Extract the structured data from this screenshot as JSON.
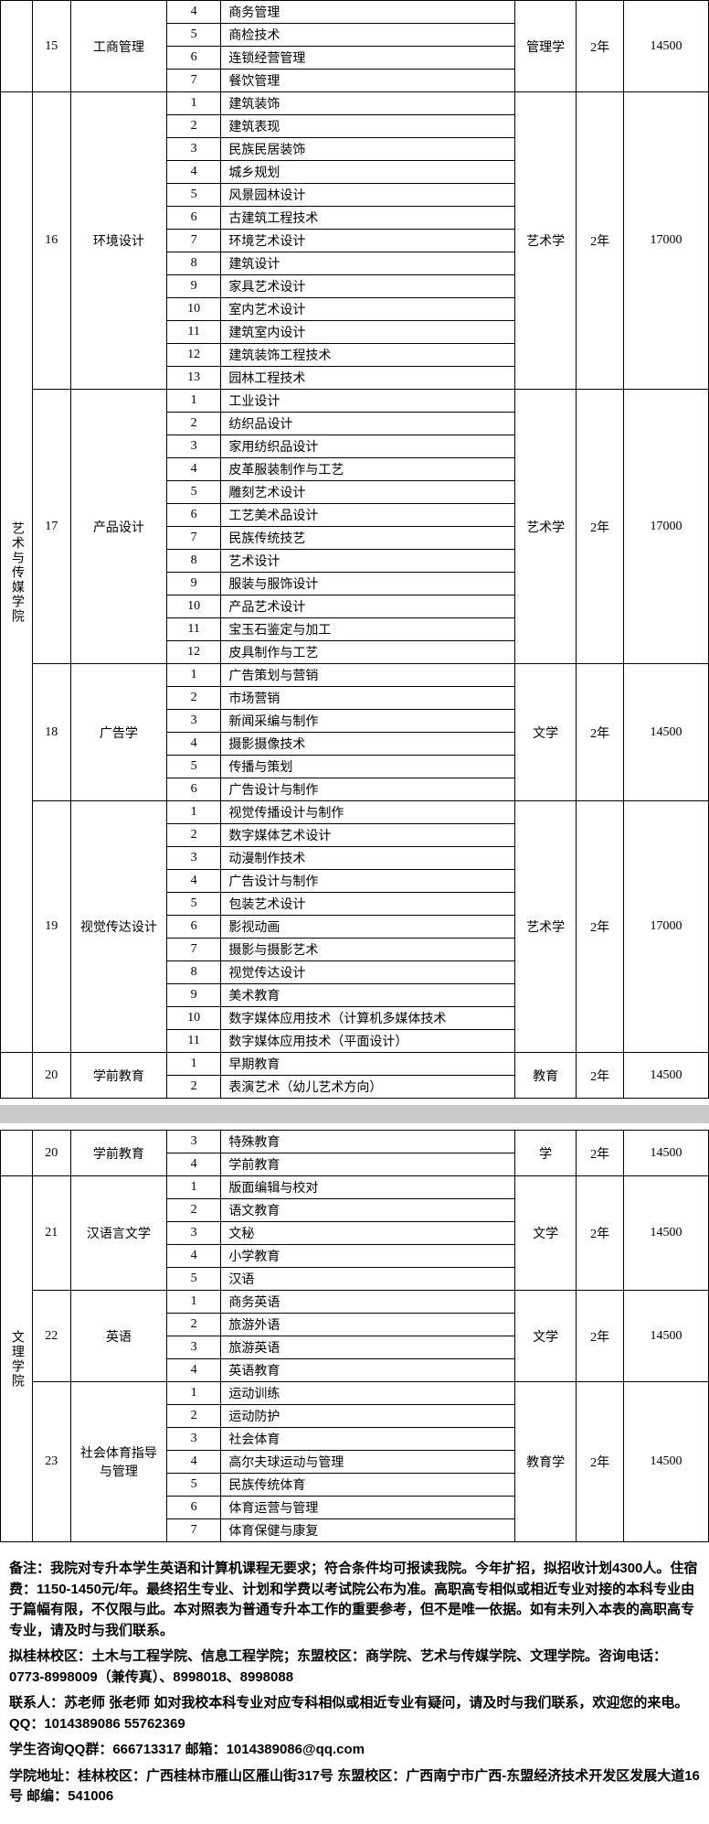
{
  "page1": {
    "dept1": "艺术与传媒学院",
    "groups": [
      {
        "mid": "15",
        "major": "工商管理",
        "cat": "管理学",
        "dur": "2年",
        "fee": "14500",
        "rows": [
          {
            "i": "4",
            "c": "商务管理"
          },
          {
            "i": "5",
            "c": "商检技术"
          },
          {
            "i": "6",
            "c": "连锁经营管理"
          },
          {
            "i": "7",
            "c": "餐饮管理"
          }
        ]
      },
      {
        "mid": "16",
        "major": "环境设计",
        "cat": "艺术学",
        "dur": "2年",
        "fee": "17000",
        "rows": [
          {
            "i": "1",
            "c": "建筑装饰"
          },
          {
            "i": "2",
            "c": "建筑表现"
          },
          {
            "i": "3",
            "c": "民族民居装饰"
          },
          {
            "i": "4",
            "c": "城乡规划"
          },
          {
            "i": "5",
            "c": "风景园林设计"
          },
          {
            "i": "6",
            "c": "古建筑工程技术"
          },
          {
            "i": "7",
            "c": "环境艺术设计"
          },
          {
            "i": "8",
            "c": "建筑设计"
          },
          {
            "i": "9",
            "c": "家具艺术设计"
          },
          {
            "i": "10",
            "c": "室内艺术设计"
          },
          {
            "i": "11",
            "c": "建筑室内设计"
          },
          {
            "i": "12",
            "c": "建筑装饰工程技术"
          },
          {
            "i": "13",
            "c": "园林工程技术"
          }
        ]
      },
      {
        "mid": "17",
        "major": "产品设计",
        "cat": "艺术学",
        "dur": "2年",
        "fee": "17000",
        "rows": [
          {
            "i": "1",
            "c": "工业设计"
          },
          {
            "i": "2",
            "c": "纺织品设计"
          },
          {
            "i": "3",
            "c": "家用纺织品设计"
          },
          {
            "i": "4",
            "c": "皮革服装制作与工艺"
          },
          {
            "i": "5",
            "c": "雕刻艺术设计"
          },
          {
            "i": "6",
            "c": "工艺美术品设计"
          },
          {
            "i": "7",
            "c": "民族传统技艺"
          },
          {
            "i": "8",
            "c": "艺术设计"
          },
          {
            "i": "9",
            "c": "服装与服饰设计"
          },
          {
            "i": "10",
            "c": "产品艺术设计"
          },
          {
            "i": "11",
            "c": "宝玉石鉴定与加工"
          },
          {
            "i": "12",
            "c": "皮具制作与工艺"
          }
        ]
      },
      {
        "mid": "18",
        "major": "广告学",
        "cat": "文学",
        "dur": "2年",
        "fee": "14500",
        "rows": [
          {
            "i": "1",
            "c": "广告策划与营销"
          },
          {
            "i": "2",
            "c": "市场营销"
          },
          {
            "i": "3",
            "c": "新闻采编与制作"
          },
          {
            "i": "4",
            "c": "摄影摄像技术"
          },
          {
            "i": "5",
            "c": "传播与策划"
          },
          {
            "i": "6",
            "c": "广告设计与制作"
          }
        ]
      },
      {
        "mid": "19",
        "major": "视觉传达设计",
        "cat": "艺术学",
        "dur": "2年",
        "fee": "17000",
        "rows": [
          {
            "i": "1",
            "c": "视觉传播设计与制作"
          },
          {
            "i": "2",
            "c": "数字媒体艺术设计"
          },
          {
            "i": "3",
            "c": "动漫制作技术"
          },
          {
            "i": "4",
            "c": "广告设计与制作"
          },
          {
            "i": "5",
            "c": "包装艺术设计"
          },
          {
            "i": "6",
            "c": "影视动画"
          },
          {
            "i": "7",
            "c": "摄影与摄影艺术"
          },
          {
            "i": "8",
            "c": "视觉传达设计"
          },
          {
            "i": "9",
            "c": "美术教育"
          },
          {
            "i": "10",
            "c": "数字媒体应用技术（计算机多媒体技术"
          },
          {
            "i": "11",
            "c": "数字媒体应用技术（平面设计）"
          }
        ]
      },
      {
        "mid": "20",
        "major": "学前教育",
        "cat": "教育",
        "dur": "2年",
        "fee": "14500",
        "rows": [
          {
            "i": "1",
            "c": "早期教育"
          },
          {
            "i": "2",
            "c": "表演艺术（幼儿艺术方向）"
          }
        ]
      }
    ]
  },
  "page2": {
    "dept": "文理学院",
    "groups": [
      {
        "mid": "20",
        "major": "学前教育",
        "cat": "学",
        "dur": "2年",
        "fee": "14500",
        "rows": [
          {
            "i": "3",
            "c": "特殊教育"
          },
          {
            "i": "4",
            "c": "学前教育"
          }
        ]
      },
      {
        "mid": "21",
        "major": "汉语言文学",
        "cat": "文学",
        "dur": "2年",
        "fee": "14500",
        "rows": [
          {
            "i": "1",
            "c": "版面编辑与校对"
          },
          {
            "i": "2",
            "c": "语文教育"
          },
          {
            "i": "3",
            "c": "文秘"
          },
          {
            "i": "4",
            "c": "小学教育"
          },
          {
            "i": "5",
            "c": "汉语"
          }
        ]
      },
      {
        "mid": "22",
        "major": "英语",
        "cat": "文学",
        "dur": "2年",
        "fee": "14500",
        "rows": [
          {
            "i": "1",
            "c": "商务英语"
          },
          {
            "i": "2",
            "c": "旅游外语"
          },
          {
            "i": "3",
            "c": "旅游英语"
          },
          {
            "i": "4",
            "c": "英语教育"
          }
        ]
      },
      {
        "mid": "23",
        "major": "社会体育指导与管理",
        "cat": "教育学",
        "dur": "2年",
        "fee": "14500",
        "rows": [
          {
            "i": "1",
            "c": "运动训练"
          },
          {
            "i": "2",
            "c": "运动防护"
          },
          {
            "i": "3",
            "c": "社会体育"
          },
          {
            "i": "4",
            "c": "高尔夫球运动与管理"
          },
          {
            "i": "5",
            "c": "民族传统体育"
          },
          {
            "i": "6",
            "c": "体育运营与管理"
          },
          {
            "i": "7",
            "c": "体育保健与康复"
          }
        ]
      }
    ]
  },
  "notes": {
    "p1": "备注：我院对专升本学生英语和计算机课程无要求；符合条件均可报读我院。今年扩招，拟招收计划4300人。住宿费：1150-1450元/年。最终招生专业、计划和学费以考试院公布为准。高职高专相似或相近专业对接的本科专业由于篇幅有限，不仅限与此。本对照表为普通专升本工作的重要参考，但不是唯一依据。如有未列入本表的高职高专专业，请及时与我们联系。",
    "p2": "拟桂林校区：土木与工程学院、信息工程学院；东盟校区：商学院、艺术与传媒学院、文理学院。咨询电话：0773-8998009（兼传真）、8998018、8998088",
    "p3": "联系人：苏老师 张老师  如对我校本科专业对应专科相似或相近专业有疑问，请及时与我们联系，欢迎您的来电。QQ：1014389086 55762369",
    "p4": "学生咨询QQ群：666713317     邮箱：1014389086@qq.com",
    "p5": "学院地址：桂林校区：广西桂林市雁山区雁山街317号  东盟校区：广西南宁市广西-东盟经济技术开发区发展大道16号        邮编：541006"
  }
}
